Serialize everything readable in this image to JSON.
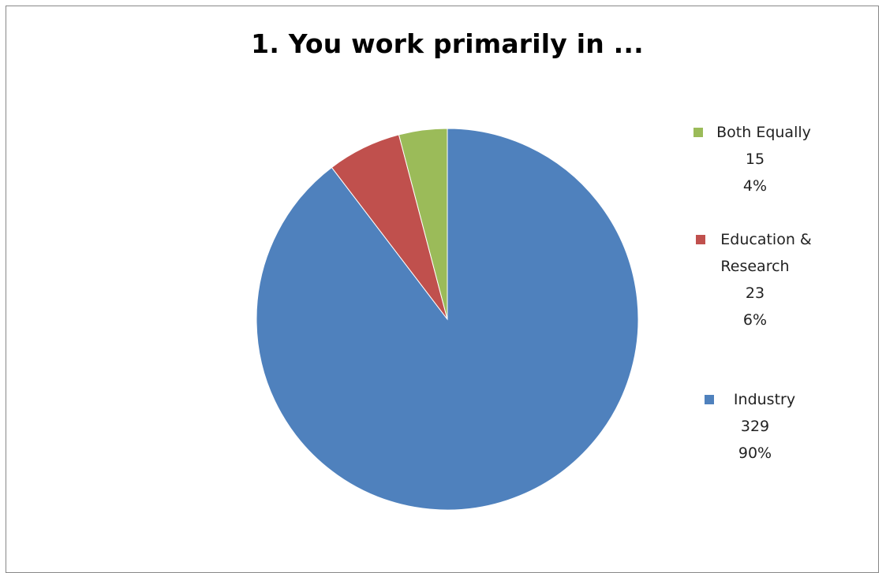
{
  "chart_data": {
    "type": "pie",
    "title": "1. You work primarily in ...",
    "slices": [
      {
        "label": "Industry",
        "value": 329,
        "percent": "90%",
        "color": "#4F81BD"
      },
      {
        "label": "Education & Research",
        "label_lines": [
          "Education &",
          "Research"
        ],
        "value": 23,
        "percent": "6%",
        "color": "#C0504D"
      },
      {
        "label": "Both Equally",
        "value": 15,
        "percent": "4%",
        "color": "#9BBB59"
      }
    ],
    "legend_order": [
      2,
      1,
      0
    ],
    "legend_position": "right"
  }
}
